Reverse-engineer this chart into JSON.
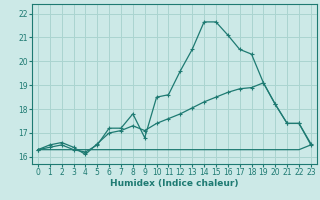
{
  "xlabel": "Humidex (Indice chaleur)",
  "bg_color": "#cce9e7",
  "grid_color": "#aad4d0",
  "line_color": "#1e7a72",
  "xlim": [
    -0.5,
    23.5
  ],
  "ylim": [
    15.7,
    22.4
  ],
  "xticks": [
    0,
    1,
    2,
    3,
    4,
    5,
    6,
    7,
    8,
    9,
    10,
    11,
    12,
    13,
    14,
    15,
    16,
    17,
    18,
    19,
    20,
    21,
    22,
    23
  ],
  "yticks": [
    16,
    17,
    18,
    19,
    20,
    21,
    22
  ],
  "line1_x": [
    0,
    1,
    2,
    3,
    4,
    5,
    6,
    7,
    8,
    9,
    10,
    11,
    12,
    13,
    14,
    15,
    16,
    17,
    18,
    19,
    20,
    21,
    22,
    23
  ],
  "line1_y": [
    16.3,
    16.4,
    16.5,
    16.3,
    16.2,
    16.5,
    17.2,
    17.2,
    17.8,
    16.8,
    18.5,
    18.6,
    19.6,
    20.5,
    21.65,
    21.65,
    21.1,
    20.5,
    20.3,
    19.1,
    18.2,
    17.4,
    17.4,
    16.5
  ],
  "line2_x": [
    0,
    1,
    2,
    3,
    4,
    5,
    6,
    7,
    8,
    9,
    10,
    11,
    12,
    13,
    14,
    15,
    16,
    17,
    18,
    19,
    20,
    21,
    22,
    23
  ],
  "line2_y": [
    16.3,
    16.5,
    16.6,
    16.4,
    16.1,
    16.55,
    17.0,
    17.1,
    17.3,
    17.1,
    17.4,
    17.6,
    17.8,
    18.05,
    18.3,
    18.5,
    18.7,
    18.85,
    18.9,
    19.1,
    18.2,
    17.4,
    17.4,
    16.55
  ],
  "line3_x": [
    0,
    1,
    2,
    3,
    4,
    5,
    6,
    7,
    8,
    9,
    10,
    11,
    12,
    13,
    14,
    15,
    16,
    17,
    18,
    19,
    20,
    21,
    22,
    23
  ],
  "line3_y": [
    16.3,
    16.3,
    16.3,
    16.3,
    16.3,
    16.3,
    16.3,
    16.3,
    16.3,
    16.3,
    16.3,
    16.3,
    16.3,
    16.3,
    16.3,
    16.3,
    16.3,
    16.3,
    16.3,
    16.3,
    16.3,
    16.3,
    16.3,
    16.5
  ]
}
